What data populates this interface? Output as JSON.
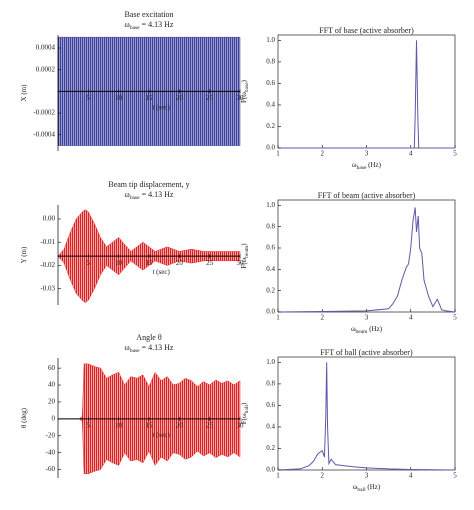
{
  "chart_data": [
    {
      "type": "band",
      "title": [
        "Base excitation"
      ],
      "subtitle": [
        "ω",
        "base",
        " = 4.13 Hz"
      ],
      "ylabel": [
        "X (m)"
      ],
      "xlabel": [
        "t (sec)"
      ],
      "xlim": [
        0,
        30
      ],
      "ylim": [
        -0.00055,
        0.00052
      ],
      "xticks": [
        5,
        10,
        15,
        20,
        25,
        30
      ],
      "yticks": [
        0.0004,
        0.0002,
        -0.0002,
        -0.0004
      ],
      "x_axis_at": 0,
      "x": [
        0,
        30
      ],
      "upper": [
        0.0005,
        0.0005
      ],
      "lower": [
        -0.0005,
        -0.0005
      ],
      "color": "#3c3f99",
      "fill": "#9a9dd0"
    },
    {
      "type": "line",
      "title": [
        "FFT of base (active absorber)"
      ],
      "ylabel": [
        "F(ω",
        "base",
        ")"
      ],
      "xlabel": [
        "ω",
        "base",
        " (Hz)"
      ],
      "xlim": [
        1,
        5
      ],
      "ylim": [
        0,
        1.05
      ],
      "xticks": [
        1,
        2,
        3,
        4,
        5
      ],
      "yticks": [
        {
          "value": 0,
          "label": "0.0"
        },
        0.2,
        0.4,
        0.6,
        0.8,
        {
          "value": 1,
          "label": "1.0"
        }
      ],
      "x": [
        1,
        4.08,
        4.1,
        4.13,
        4.16,
        4.18,
        5
      ],
      "values": [
        0,
        0,
        0.3,
        1.0,
        0.3,
        0,
        0
      ],
      "color": "#5a5aa8"
    },
    {
      "type": "band",
      "title": [
        "Beam tip displacement, y"
      ],
      "subtitle": [
        "ω",
        "base",
        " = 4.13 Hz"
      ],
      "ylabel": [
        "Y (m)"
      ],
      "xlabel": [
        "t (sec)"
      ],
      "xlim": [
        0,
        30
      ],
      "ylim": [
        -0.037,
        0.006
      ],
      "xticks": [
        5,
        10,
        15,
        20,
        25,
        30
      ],
      "yticks": [
        {
          "value": 0,
          "label": "0.00"
        },
        -0.01,
        -0.02,
        -0.03
      ],
      "x_axis_at": -0.016,
      "x": [
        0,
        1,
        2,
        3,
        4,
        4.5,
        5,
        6,
        7,
        8,
        9,
        10,
        11,
        12,
        13,
        14,
        15,
        16,
        17,
        18,
        19,
        20,
        22,
        24,
        26,
        28,
        30
      ],
      "upper": [
        -0.016,
        -0.013,
        -0.006,
        0,
        0.003,
        0.004,
        0.003,
        -0.002,
        -0.008,
        -0.012,
        -0.01,
        -0.008,
        -0.011,
        -0.014,
        -0.012,
        -0.01,
        -0.012,
        -0.014,
        -0.013,
        -0.012,
        -0.013,
        -0.014,
        -0.013,
        -0.014,
        -0.014,
        -0.014,
        -0.014
      ],
      "lower": [
        -0.016,
        -0.019,
        -0.026,
        -0.032,
        -0.035,
        -0.036,
        -0.035,
        -0.03,
        -0.024,
        -0.02,
        -0.022,
        -0.024,
        -0.021,
        -0.018,
        -0.02,
        -0.022,
        -0.02,
        -0.018,
        -0.019,
        -0.02,
        -0.019,
        -0.018,
        -0.019,
        -0.018,
        -0.018,
        -0.018,
        -0.018
      ],
      "color": "#e02020",
      "fill": "#f4a8a8"
    },
    {
      "type": "line",
      "title": [
        "FFT of beam (active absorber)"
      ],
      "ylabel": [
        "F(ω",
        "beam",
        ")"
      ],
      "xlabel": [
        "ω",
        "beam",
        " (Hz)"
      ],
      "xlim": [
        1,
        5
      ],
      "ylim": [
        0,
        1.05
      ],
      "xticks": [
        1,
        2,
        3,
        4,
        5
      ],
      "yticks": [
        {
          "value": 0,
          "label": "0.0"
        },
        0.2,
        0.4,
        0.6,
        0.8,
        {
          "value": 1,
          "label": "1.0"
        }
      ],
      "x": [
        1,
        2,
        3,
        3.5,
        3.6,
        3.7,
        3.8,
        3.9,
        3.95,
        4.0,
        4.05,
        4.1,
        4.13,
        4.17,
        4.2,
        4.25,
        4.3,
        4.4,
        4.5,
        4.6,
        4.7,
        4.8,
        5
      ],
      "values": [
        0,
        0.005,
        0.01,
        0.03,
        0.08,
        0.15,
        0.3,
        0.42,
        0.45,
        0.6,
        0.85,
        0.98,
        0.75,
        0.9,
        0.6,
        0.55,
        0.3,
        0.15,
        0.05,
        0.12,
        0.02,
        0.01,
        0
      ],
      "color": "#5a5aa8"
    },
    {
      "type": "band",
      "title": [
        "Angle θ"
      ],
      "subtitle": [
        "ω",
        "base",
        " = 4.13 Hz"
      ],
      "ylabel": [
        "θ (deg)"
      ],
      "xlabel": [
        "t (sec)"
      ],
      "xlim": [
        0,
        30
      ],
      "ylim": [
        -70,
        72
      ],
      "xticks": [
        5,
        10,
        15,
        20,
        25,
        30
      ],
      "yticks": [
        60,
        40,
        20,
        0,
        -20,
        -40,
        -60
      ],
      "x_axis_at": 0,
      "x": [
        0,
        3.5,
        4,
        4.3,
        5,
        6,
        7,
        8,
        9,
        10,
        11,
        12,
        13,
        14,
        15,
        16,
        17,
        18,
        19,
        20,
        21,
        22,
        23,
        24,
        25,
        26,
        27,
        28,
        29,
        30
      ],
      "upper": [
        0,
        0,
        3,
        65,
        65,
        62,
        60,
        48,
        52,
        55,
        40,
        50,
        48,
        52,
        38,
        55,
        45,
        50,
        40,
        42,
        48,
        45,
        38,
        44,
        40,
        46,
        42,
        45,
        40,
        45
      ],
      "lower": [
        0,
        0,
        -3,
        -65,
        -65,
        -62,
        -60,
        -48,
        -52,
        -55,
        -40,
        -50,
        -48,
        -52,
        -38,
        -55,
        -45,
        -50,
        -40,
        -42,
        -48,
        -45,
        -38,
        -44,
        -40,
        -46,
        -42,
        -45,
        -40,
        -45
      ],
      "color": "#e02020",
      "fill": "#f4a8a8"
    },
    {
      "type": "line",
      "title": [
        "FFT of ball (active absorber)"
      ],
      "ylabel": [
        "F(ω",
        "ball",
        ")"
      ],
      "xlabel": [
        "ω",
        "ball",
        " (Hz)"
      ],
      "xlim": [
        1,
        5
      ],
      "ylim": [
        0,
        1.05
      ],
      "xticks": [
        1,
        2,
        3,
        4,
        5
      ],
      "yticks": [
        {
          "value": 0,
          "label": "0.0"
        },
        0.2,
        0.4,
        0.6,
        0.8,
        {
          "value": 1,
          "label": "1.0"
        }
      ],
      "x": [
        1,
        1.5,
        1.7,
        1.8,
        1.9,
        2.0,
        2.05,
        2.08,
        2.1,
        2.12,
        2.15,
        2.2,
        2.3,
        2.5,
        2.7,
        3,
        3.5,
        4,
        5
      ],
      "values": [
        0,
        0.01,
        0.04,
        0.08,
        0.15,
        0.18,
        0.12,
        0.5,
        1.0,
        0.4,
        0.06,
        0.1,
        0.05,
        0.04,
        0.03,
        0.02,
        0.01,
        0.005,
        0
      ],
      "color": "#5a5aa8"
    }
  ]
}
